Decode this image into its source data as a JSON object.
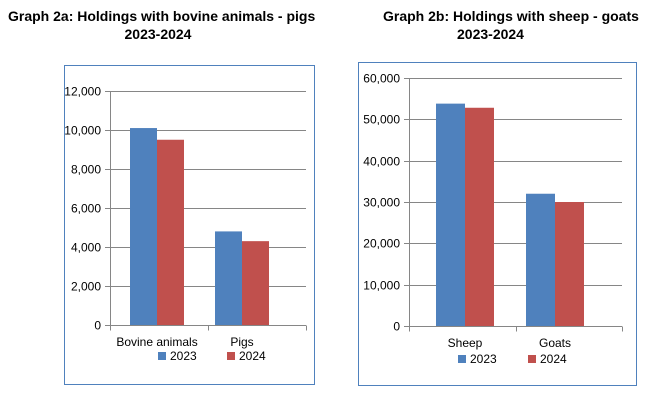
{
  "titles": {
    "graph_a_line1": "Graph 2a: Holdings with bovine animals - pigs",
    "graph_a_line2": "2023-2024",
    "graph_b_line1": "Graph 2b: Holdings with sheep - goats",
    "graph_b_line2": "2023-2024"
  },
  "colors": {
    "series_2023": "#4f81bd",
    "series_2024": "#c0504d",
    "frame_border": "#4f81bd",
    "gridline": "#868686",
    "axis": "#868686"
  },
  "chart_data": [
    {
      "type": "bar",
      "title": "Graph 2a: Holdings with bovine animals - pigs 2023-2024",
      "categories": [
        "Bovine animals",
        "Pigs"
      ],
      "series": [
        {
          "name": "2023",
          "values": [
            10100,
            4800
          ]
        },
        {
          "name": "2024",
          "values": [
            9500,
            4300
          ]
        }
      ],
      "ylim": [
        0,
        12000
      ],
      "yticks": [
        0,
        2000,
        4000,
        6000,
        8000,
        10000,
        12000
      ],
      "ytick_labels": [
        "0",
        "2,000",
        "4,000",
        "6,000",
        "8,000",
        "10,000",
        "12,000"
      ],
      "legend": "bottom",
      "grid": true
    },
    {
      "type": "bar",
      "title": "Graph 2b: Holdings with sheep - goats 2023-2024",
      "categories": [
        "Sheep",
        "Goats"
      ],
      "series": [
        {
          "name": "2023",
          "values": [
            53800,
            32000
          ]
        },
        {
          "name": "2024",
          "values": [
            52800,
            30000
          ]
        }
      ],
      "ylim": [
        0,
        60000
      ],
      "yticks": [
        0,
        10000,
        20000,
        30000,
        40000,
        50000,
        60000
      ],
      "ytick_labels": [
        "0",
        "10,000",
        "20,000",
        "30,000",
        "40,000",
        "50,000",
        "60,000"
      ],
      "legend": "bottom",
      "grid": true
    }
  ]
}
